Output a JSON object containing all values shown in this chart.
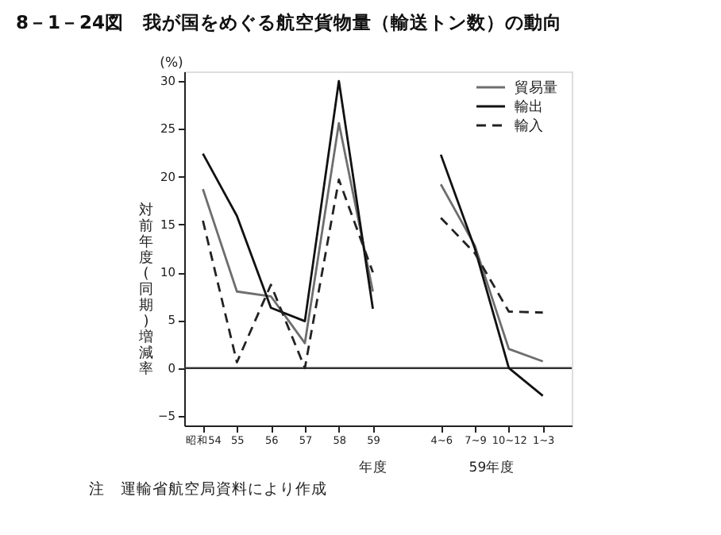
{
  "chart_data": {
    "type": "line",
    "title": "8－1－24図　我が国をめぐる航空貨物量（輸送トン数）の動向",
    "ylabel": "対前年度(同期)増減率",
    "categories": [
      "昭和54",
      "55",
      "56",
      "57",
      "58",
      "59",
      null,
      "4~6",
      "7~9",
      "10~12",
      "1~3"
    ],
    "series": [
      {
        "name": "貿易量",
        "color": "#6e6e6e",
        "line_style": "solid",
        "values": [
          18.7,
          8.0,
          7.5,
          2.6,
          25.6,
          8.0,
          null,
          19.2,
          12.8,
          2.0,
          0.7
        ]
      },
      {
        "name": "輸出",
        "color": "#111111",
        "line_style": "solid",
        "values": [
          22.4,
          15.9,
          6.3,
          4.9,
          30.0,
          6.2,
          null,
          22.3,
          12.5,
          0.0,
          -2.9
        ]
      },
      {
        "name": "輸入",
        "color": "#222222",
        "line_style": "dashed",
        "values": [
          15.4,
          0.6,
          8.7,
          0.0,
          19.7,
          10.0,
          null,
          15.7,
          12.0,
          5.9,
          5.8
        ]
      }
    ],
    "ylim": [
      -6,
      31
    ],
    "yticks": [
      -5,
      0,
      5,
      10,
      15,
      20,
      25,
      30
    ],
    "ref_lines": [
      {
        "axis": "y",
        "value": 0,
        "color": "#333333"
      }
    ],
    "grid": false,
    "legend": "top right",
    "marker": "none",
    "annotations": [
      "(%)",
      "年度",
      "59年度",
      "注　運輸省航空局資料により作成"
    ]
  }
}
